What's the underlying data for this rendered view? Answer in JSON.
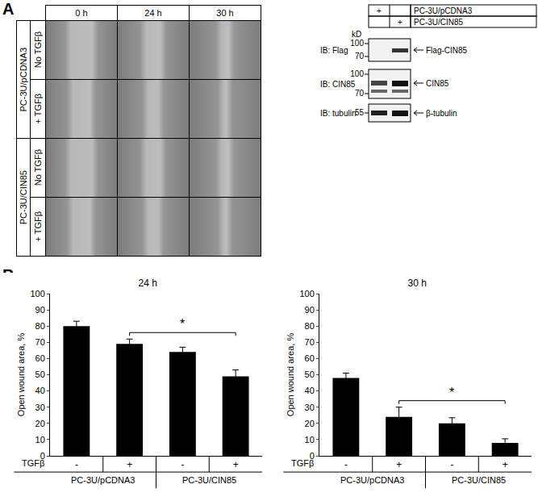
{
  "panel_labels": [
    "A",
    "B"
  ],
  "wound_images": {
    "columns": [
      "0 h",
      "24 h",
      "30 h"
    ],
    "groups": [
      {
        "label": "PC-3U/pCDNA3",
        "rows": [
          "No TGFβ",
          "+ TGFβ"
        ]
      },
      {
        "label": "PC-3U/CIN85",
        "rows": [
          "No TGFβ",
          "+ TGFβ"
        ]
      }
    ]
  },
  "blot": {
    "lanes": [
      "PC-3U/pCDNA3",
      "PC-3U/CIN85"
    ],
    "lane_mark": "+",
    "unit": "kD",
    "rows": [
      {
        "label": "IB: Flag",
        "markers": [
          100,
          70
        ],
        "band": "Flag-CIN85"
      },
      {
        "label": "IB: CIN85",
        "markers": [
          100,
          70
        ],
        "band": "CIN85"
      },
      {
        "label": "IB: tubulin",
        "markers": [
          55
        ],
        "band": "β-tubulin"
      }
    ]
  },
  "chart_data": [
    {
      "type": "bar",
      "title": "24 h",
      "y_label": "Open wound area, %",
      "categories": [
        "-",
        "+",
        "-",
        "+"
      ],
      "category_row_label": "TGFβ",
      "groups": [
        {
          "label": "PC-3U/pCDNA3",
          "span": [
            0,
            1
          ]
        },
        {
          "label": "PC-3U/CIN85",
          "span": [
            2,
            3
          ]
        }
      ],
      "values": [
        80,
        69,
        64,
        49
      ],
      "errors": [
        3,
        3,
        3,
        4
      ],
      "color": "#000000",
      "ylim": [
        0,
        100
      ],
      "yticks": [
        0,
        10,
        20,
        30,
        40,
        50,
        60,
        70,
        80,
        90,
        100
      ],
      "grid": false,
      "significance": {
        "between": [
          1,
          3
        ],
        "label": "*"
      }
    },
    {
      "type": "bar",
      "title": "30 h",
      "y_label": "Open wound area, %",
      "categories": [
        "-",
        "+",
        "-",
        "+"
      ],
      "category_row_label": "TGFβ",
      "groups": [
        {
          "label": "PC-3U/pCDNA3",
          "span": [
            0,
            1
          ]
        },
        {
          "label": "PC-3U/CIN85",
          "span": [
            2,
            3
          ]
        }
      ],
      "values": [
        48,
        24,
        20,
        8
      ],
      "errors": [
        3,
        6,
        3.5,
        2.5
      ],
      "color": "#000000",
      "ylim": [
        0,
        100
      ],
      "yticks": [
        0,
        10,
        20,
        30,
        40,
        50,
        60,
        70,
        80,
        90,
        100
      ],
      "grid": false,
      "significance": {
        "between": [
          1,
          3
        ],
        "label": "*"
      }
    }
  ]
}
